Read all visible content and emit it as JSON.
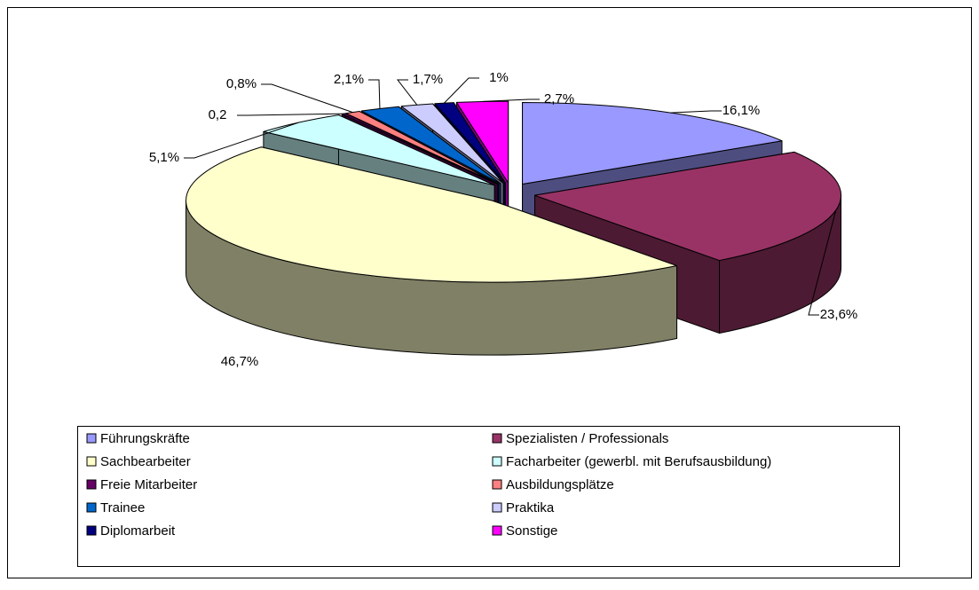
{
  "chart_data": {
    "type": "pie3d",
    "categories": [
      "Führungskräfte",
      "Spezialisten / Professionals",
      "Sachbearbeiter",
      "Facharbeiter (gewerbl. mit Berufsausbildung)",
      "Freie Mitarbeiter",
      "Ausbildungsplätze",
      "Trainee",
      "Praktika",
      "Diplomarbeit",
      "Sonstige"
    ],
    "values": [
      16.1,
      23.6,
      46.7,
      5.1,
      0.2,
      0.8,
      2.1,
      1.7,
      1,
      2.7
    ],
    "value_labels": [
      "16,1%",
      "23,6%",
      "46,7%",
      "5,1%",
      "0,2",
      "0,8%",
      "2,1%",
      "1,7%",
      "1%",
      "2,7%"
    ],
    "colors": [
      "#9999ff",
      "#993366",
      "#ffffcc",
      "#ccffff",
      "#660066",
      "#ff8080",
      "#0066cc",
      "#ccccff",
      "#000080",
      "#ff00ff"
    ],
    "legend": "bottom"
  }
}
